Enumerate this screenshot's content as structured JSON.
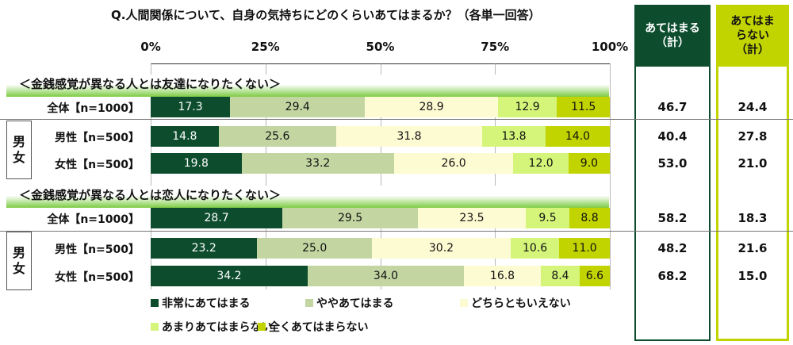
{
  "chart_data": {
    "type": "bar",
    "stacked": true,
    "orientation": "horizontal",
    "title": "Q.人間関係について、自身の気持ちにどのくらいあてはまるか？（各単一回答）",
    "x_ticks": [
      "0%",
      "25%",
      "50%",
      "75%",
      "100%"
    ],
    "xlim": [
      0,
      100
    ],
    "legend": [
      "非常にあてはまる",
      "ややあてはまる",
      "どちらともいえない",
      "あまりあてはまらない",
      "全くあてはまらない"
    ],
    "colors": [
      "#0d4d2e",
      "#c3d6a2",
      "#fdfbd2",
      "#d4f57a",
      "#c2d400"
    ],
    "label_colors": [
      "#ffffff",
      "#111111",
      "#111111",
      "#111111",
      "#111111"
    ],
    "sections": [
      {
        "title": "＜金銭感覚が異なる人とは友達になりたくない＞",
        "rows": [
          {
            "label": "全体【n=1000】",
            "values": [
              17.3,
              29.4,
              28.9,
              12.9,
              11.5
            ],
            "apply_total": "46.7",
            "not_apply_total": "24.4"
          },
          {
            "label": "男性【n=500】",
            "values": [
              14.8,
              25.6,
              31.8,
              13.8,
              14.0
            ],
            "apply_total": "40.4",
            "not_apply_total": "27.8"
          },
          {
            "label": "女性【n=500】",
            "values": [
              19.8,
              33.2,
              26.0,
              12.0,
              9.0
            ],
            "apply_total": "53.0",
            "not_apply_total": "21.0"
          }
        ]
      },
      {
        "title": "＜金銭感覚が異なる人とは恋人になりたくない＞",
        "rows": [
          {
            "label": "全体【n=1000】",
            "values": [
              28.7,
              29.5,
              23.5,
              9.5,
              8.8
            ],
            "apply_total": "58.2",
            "not_apply_total": "18.3"
          },
          {
            "label": "男性【n=500】",
            "values": [
              23.2,
              25.0,
              30.2,
              10.6,
              11.0
            ],
            "apply_total": "48.2",
            "not_apply_total": "21.6"
          },
          {
            "label": "女性【n=500】",
            "values": [
              34.2,
              34.0,
              16.8,
              8.4,
              6.6
            ],
            "apply_total": "68.2",
            "not_apply_total": "15.0"
          }
        ]
      }
    ],
    "group_label": "男女"
  },
  "columns": {
    "apply_header": "あてはまる（計）",
    "not_apply_header": "あてはまらない（計）",
    "apply_color": "#0d4d2e",
    "not_apply_color": "#c2d400"
  }
}
